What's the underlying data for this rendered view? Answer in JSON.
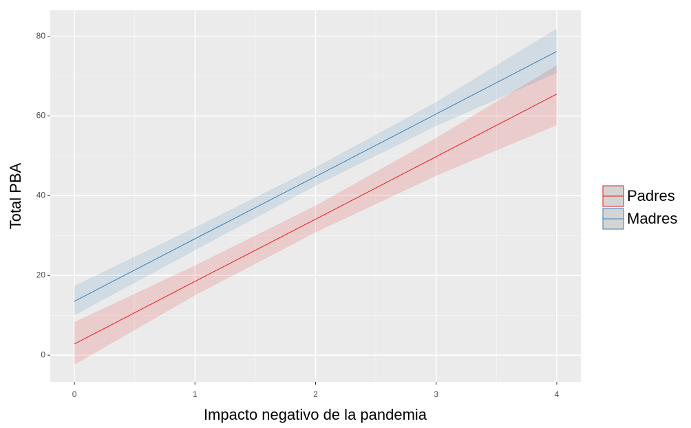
{
  "chart_data": {
    "type": "line",
    "xlabel": "Impacto negativo de la pandemia",
    "ylabel": "Total PBA",
    "x": [
      0,
      1,
      2,
      3,
      4
    ],
    "series": [
      {
        "name": "Padres",
        "color": "#e41a1c",
        "values": [
          2.8,
          18.5,
          34.1,
          49.8,
          65.5
        ],
        "lower": [
          -2.4,
          15.0,
          30.8,
          45.0,
          57.7
        ],
        "upper": [
          8.3,
          22.5,
          37.5,
          54.5,
          72.7
        ]
      },
      {
        "name": "Madres",
        "color": "#377eb8",
        "values": [
          13.5,
          29.2,
          44.8,
          60.5,
          76.2
        ],
        "lower": [
          10.0,
          26.3,
          42.5,
          57.5,
          70.8
        ],
        "upper": [
          17.4,
          32.0,
          47.1,
          63.5,
          81.9
        ]
      }
    ],
    "xlim": [
      -0.2,
      4.2
    ],
    "ylim": [
      -6.7,
      86.5
    ],
    "xticks": [
      0,
      1,
      2,
      3,
      4
    ],
    "yticks": [
      0,
      20,
      40,
      60,
      80
    ],
    "grid": true,
    "legend": "right"
  }
}
